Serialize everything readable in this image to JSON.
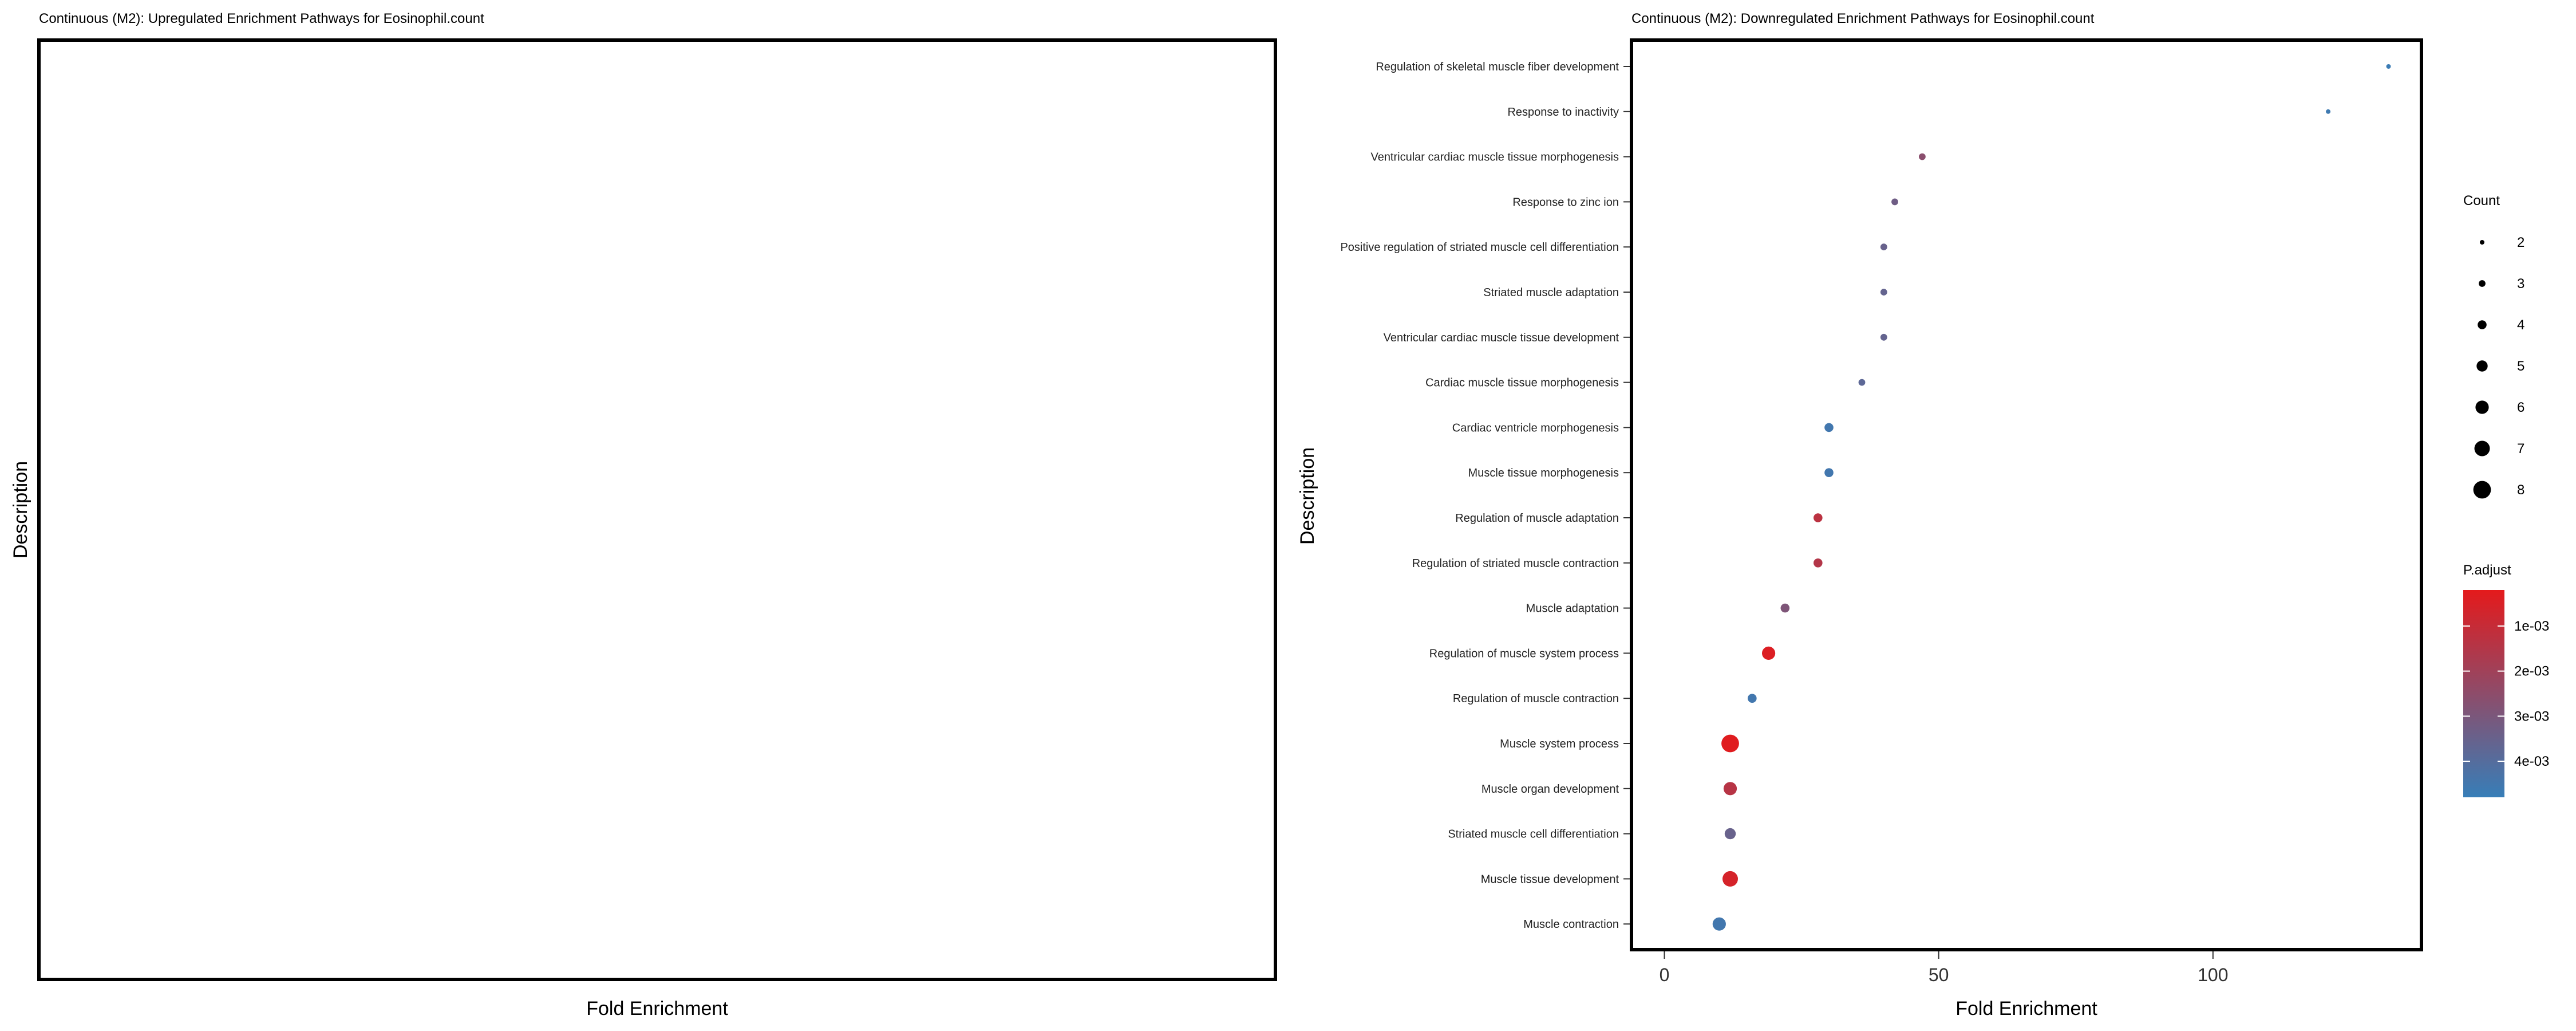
{
  "chart_data": [
    {
      "type": "scatter",
      "title": "Continuous (M2): Upregulated Enrichment Pathways for Eosinophil.count",
      "xlabel": "Fold Enrichment",
      "ylabel": "Description",
      "categories": [],
      "points": []
    },
    {
      "type": "scatter",
      "title": "Continuous (M2): Downregulated Enrichment Pathways for Eosinophil.count",
      "xlabel": "Fold Enrichment",
      "ylabel": "Description",
      "xlim": [
        -6,
        138
      ],
      "xticks": [
        0,
        50,
        100
      ],
      "categories": [
        "Regulation of skeletal muscle fiber development",
        "Response to inactivity",
        "Ventricular cardiac muscle tissue morphogenesis",
        "Response to zinc ion",
        "Positive regulation of striated muscle cell differentiation",
        "Striated muscle adaptation",
        "Ventricular cardiac muscle tissue development",
        "Cardiac muscle tissue morphogenesis",
        "Cardiac ventricle morphogenesis",
        "Muscle tissue morphogenesis",
        "Regulation of muscle adaptation",
        "Regulation of striated muscle contraction",
        "Muscle adaptation",
        "Regulation of muscle system process",
        "Regulation of muscle contraction",
        "Muscle system process",
        "Muscle organ development",
        "Striated muscle cell differentiation",
        "Muscle tissue development",
        "Muscle contraction"
      ],
      "points": [
        {
          "x": 132,
          "count": 2,
          "p_adjust": 0.0047
        },
        {
          "x": 121,
          "count": 2,
          "p_adjust": 0.0046
        },
        {
          "x": 47,
          "count": 3,
          "p_adjust": 0.0026
        },
        {
          "x": 42,
          "count": 3,
          "p_adjust": 0.0033
        },
        {
          "x": 40,
          "count": 3,
          "p_adjust": 0.0035
        },
        {
          "x": 40,
          "count": 3,
          "p_adjust": 0.0036
        },
        {
          "x": 40,
          "count": 3,
          "p_adjust": 0.0036
        },
        {
          "x": 36,
          "count": 3,
          "p_adjust": 0.0038
        },
        {
          "x": 30,
          "count": 4,
          "p_adjust": 0.0045
        },
        {
          "x": 30,
          "count": 4,
          "p_adjust": 0.0045
        },
        {
          "x": 28,
          "count": 4,
          "p_adjust": 0.0013
        },
        {
          "x": 28,
          "count": 4,
          "p_adjust": 0.0015
        },
        {
          "x": 22,
          "count": 4,
          "p_adjust": 0.0029
        },
        {
          "x": 19,
          "count": 6,
          "p_adjust": 0.0004
        },
        {
          "x": 16,
          "count": 4,
          "p_adjust": 0.0045
        },
        {
          "x": 12,
          "count": 8,
          "p_adjust": 0.0003
        },
        {
          "x": 12,
          "count": 6,
          "p_adjust": 0.0014
        },
        {
          "x": 12,
          "count": 5,
          "p_adjust": 0.0035
        },
        {
          "x": 12,
          "count": 7,
          "p_adjust": 0.0006
        },
        {
          "x": 10,
          "count": 6,
          "p_adjust": 0.0045
        }
      ],
      "legend": {
        "size_title": "Count",
        "size_values": [
          2,
          3,
          4,
          5,
          6,
          7,
          8
        ],
        "color_title": "P.adjust",
        "color_ticks": [
          "1e-03",
          "2e-03",
          "3e-03",
          "4e-03"
        ],
        "color_tick_values": [
          0.001,
          0.002,
          0.003,
          0.004
        ],
        "color_range": [
          0.0002,
          0.0048
        ],
        "color_low": "#e41a1c",
        "color_high": "#377eb8"
      }
    }
  ]
}
